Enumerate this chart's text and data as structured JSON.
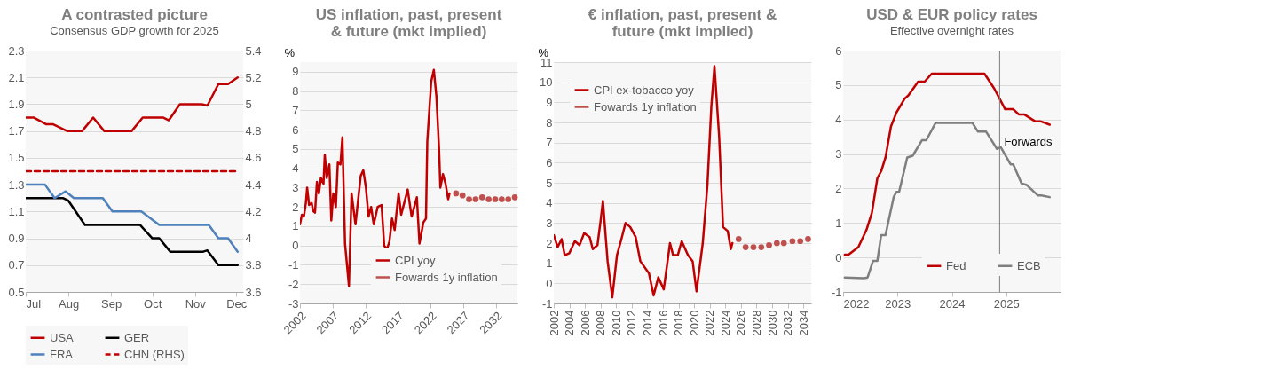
{
  "chart_data": [
    {
      "type": "line",
      "title": "A contrasted picture",
      "subtitle": "Consensus GDP growth for 2025",
      "xlim": [
        "--07-01",
        "--12-06"
      ],
      "xticks": [
        {
          "value": "--07-01",
          "label": "Jul"
        },
        {
          "value": "--08-01",
          "label": "Aug"
        },
        {
          "value": "--09-01",
          "label": "Sep"
        },
        {
          "value": "--10-01",
          "label": "Oct"
        },
        {
          "value": "--11-01",
          "label": "Nov"
        },
        {
          "value": "--12-01",
          "label": "Dec"
        }
      ],
      "ylim": [
        0.5,
        2.3
      ],
      "yticks": [
        0.5,
        0.7,
        0.9,
        1.1,
        1.3,
        1.5,
        1.7,
        1.9,
        2.1,
        2.3
      ],
      "y2lim": [
        3.6,
        5.4
      ],
      "y2ticks": [
        3.6,
        3.8,
        4,
        4.2,
        4.4,
        4.6,
        4.8,
        5,
        5.2,
        5.4
      ],
      "grid": "y",
      "legend": "bottom",
      "series": [
        {
          "name": "USA",
          "color": "#c00000",
          "x": [
            "--07-01",
            "--07-07",
            "--07-16",
            "--07-21",
            "--07-31",
            "--08-06",
            "--08-11",
            "--08-19",
            "--08-27",
            "--09-02",
            "--09-10",
            "--09-16",
            "--09-24",
            "--10-01",
            "--10-09",
            "--10-13",
            "--10-21",
            "--10-29",
            "--11-06",
            "--11-10",
            "--11-18",
            "--11-25",
            "--12-02"
          ],
          "values": [
            1.8,
            1.8,
            1.75,
            1.75,
            1.7,
            1.7,
            1.7,
            1.8,
            1.7,
            1.7,
            1.7,
            1.7,
            1.8,
            1.8,
            1.8,
            1.78,
            1.9,
            1.9,
            1.9,
            1.89,
            2.05,
            2.05,
            2.1
          ]
        },
        {
          "name": "GER",
          "color": "#000000",
          "x": [
            "--07-01",
            "--07-28",
            "--08-01",
            "--08-13",
            "--08-17",
            "--09-14",
            "--09-22",
            "--10-01",
            "--10-06",
            "--10-14",
            "--10-21",
            "--11-07",
            "--11-10",
            "--11-18",
            "--11-25",
            "--12-02"
          ],
          "values": [
            1.2,
            1.2,
            1.18,
            1.0,
            1.0,
            1.0,
            1.0,
            0.9,
            0.9,
            0.8,
            0.8,
            0.8,
            0.81,
            0.7,
            0.7,
            0.7
          ]
        },
        {
          "name": "FRA",
          "color": "#4f81bd",
          "x": [
            "--07-01",
            "--07-15",
            "--07-22",
            "--07-30",
            "--08-05",
            "--08-26",
            "--09-02",
            "--09-23",
            "--10-06",
            "--11-11",
            "--11-18",
            "--11-25",
            "--12-02"
          ],
          "values": [
            1.3,
            1.3,
            1.2,
            1.25,
            1.2,
            1.2,
            1.1,
            1.1,
            1.0,
            1.0,
            0.9,
            0.9,
            0.8
          ]
        },
        {
          "name": "CHN (RHS)",
          "color": "#c00000",
          "axis": "y2",
          "line_style": "dashed",
          "x": [
            "--07-01",
            "--12-02"
          ],
          "values": [
            4.5,
            4.5
          ]
        }
      ]
    },
    {
      "type": "line",
      "title": "US inflation, past, present & future (mkt implied)",
      "ylabel": "%",
      "xlim": [
        2002,
        2035.3
      ],
      "xticks": [
        2002,
        2007,
        2012,
        2017,
        2022,
        2027,
        2032
      ],
      "ylim": [
        -3,
        9.5
      ],
      "yticks": [
        -3,
        -2,
        -1,
        0,
        1,
        2,
        3,
        4,
        5,
        6,
        7,
        8,
        9
      ],
      "grid": "y",
      "legend": "bottom right",
      "series": [
        {
          "name": "CPI yoy",
          "color": "#c00000",
          "x": [
            2002,
            2002.3,
            2002.6,
            2002.9,
            2003.1,
            2003.4,
            2003.8,
            2004.0,
            2004.3,
            2004.6,
            2004.9,
            2005.2,
            2005.6,
            2005.8,
            2006.1,
            2006.5,
            2006.8,
            2007.1,
            2007.5,
            2007.8,
            2008.2,
            2008.5,
            2008.9,
            2009.5,
            2009.9,
            2010.5,
            2011.3,
            2011.7,
            2012.1,
            2012.5,
            2012.9,
            2013.3,
            2013.9,
            2014.5,
            2014.9,
            2015.3,
            2015.7,
            2016.1,
            2016.5,
            2017.1,
            2017.5,
            2018.5,
            2019.1,
            2019.9,
            2020.3,
            2020.9,
            2021.3,
            2021.5,
            2022.1,
            2022.5,
            2022.9,
            2023.3,
            2023.5,
            2023.9,
            2024.3,
            2024.7,
            2024.9
          ],
          "values": [
            1.1,
            1.6,
            1.5,
            2.2,
            3.0,
            2.1,
            2.2,
            1.8,
            1.7,
            3.3,
            2.7,
            3.5,
            3.2,
            4.7,
            3.5,
            4.2,
            1.3,
            2.7,
            2.0,
            4.3,
            4.2,
            5.6,
            0.1,
            -2.1,
            2.7,
            1.1,
            3.6,
            3.9,
            3.0,
            1.5,
            2.0,
            1.1,
            2.0,
            2.1,
            0.0,
            -0.2,
            0.2,
            1.4,
            0.8,
            2.7,
            1.6,
            2.9,
            1.5,
            2.5,
            0.1,
            1.2,
            1.4,
            5.4,
            8.5,
            9.1,
            7.7,
            5.0,
            3.0,
            3.7,
            3.2,
            2.4,
            2.7
          ]
        },
        {
          "name": "Fowards 1y inflation",
          "type": "scatter",
          "marker": "circle",
          "color": "#c0504d",
          "x": [
            2025.9,
            2026.9,
            2027.9,
            2028.9,
            2029.9,
            2030.9,
            2031.9,
            2032.9,
            2033.9,
            2034.9
          ],
          "values": [
            2.7,
            2.6,
            2.4,
            2.4,
            2.5,
            2.4,
            2.4,
            2.4,
            2.4,
            2.5
          ]
        }
      ]
    },
    {
      "type": "line",
      "title": "€ inflation, past, present & future (mkt implied)",
      "ylabel": "%",
      "xlim": [
        2002,
        2035
      ],
      "xticks": [
        2002,
        2004,
        2006,
        2008,
        2010,
        2012,
        2014,
        2016,
        2018,
        2020,
        2022,
        2024,
        2026,
        2028,
        2030,
        2032,
        2034
      ],
      "ylim": [
        -1,
        11
      ],
      "yticks": [
        -1,
        0,
        1,
        2,
        3,
        4,
        5,
        6,
        7,
        8,
        9,
        10,
        11
      ],
      "grid": "y",
      "legend": "top left",
      "series": [
        {
          "name": "CPI ex-tobacco yoy",
          "color": "#c00000",
          "x": [
            2002,
            2002.5,
            2003,
            2003.4,
            2004,
            2004.7,
            2005.3,
            2005.9,
            2006.6,
            2007,
            2007.6,
            2008,
            2008.3,
            2008.9,
            2009.5,
            2010.1,
            2010.6,
            2011.2,
            2011.8,
            2012.5,
            2013.1,
            2014.2,
            2014.8,
            2015.4,
            2016.1,
            2016.9,
            2017.3,
            2017.9,
            2018.4,
            2019.2,
            2019.8,
            2020.3,
            2021.1,
            2021.7,
            2022.2,
            2022.6,
            2023.2,
            2023.7,
            2024.3,
            2024.7,
            2024.9
          ],
          "values": [
            2.4,
            1.8,
            2.2,
            1.4,
            1.5,
            2.1,
            1.9,
            2.5,
            2.3,
            1.7,
            1.9,
            3.1,
            4.1,
            1.1,
            -0.7,
            1.4,
            2.1,
            3.0,
            2.8,
            2.3,
            1.1,
            0.5,
            -0.6,
            0.3,
            -0.3,
            2.0,
            1.4,
            1.4,
            2.1,
            1.4,
            1.1,
            -0.4,
            2.0,
            4.9,
            8.8,
            10.8,
            7.3,
            2.8,
            2.6,
            1.7,
            2.0
          ]
        },
        {
          "name": "Fowards 1y inflation",
          "type": "scatter",
          "marker": "circle",
          "color": "#c0504d",
          "x": [
            2025.7,
            2026.6,
            2027.6,
            2028.6,
            2029.6,
            2030.6,
            2031.5,
            2032.6,
            2033.6,
            2034.6
          ],
          "values": [
            2.2,
            1.8,
            1.8,
            1.8,
            1.9,
            2.0,
            2.0,
            2.1,
            2.1,
            2.2
          ]
        }
      ]
    },
    {
      "type": "line",
      "title": "USD & EUR policy rates",
      "subtitle": "Effective overnight rates",
      "xlim": [
        2022,
        2026
      ],
      "xticks": [
        2022,
        2023,
        2024,
        2025
      ],
      "ylim": [
        -1,
        6
      ],
      "yticks": [
        -1,
        0,
        1,
        2,
        3,
        4,
        5,
        6
      ],
      "grid": "y",
      "legend": "bottom right",
      "ref_lines": [
        {
          "axis": "x",
          "value": 2024.88,
          "label": "Forwards",
          "color": "#7f7f7f"
        }
      ],
      "series": [
        {
          "name": "Fed",
          "color": "#c00000",
          "x": [
            2022.03,
            2022.1,
            2022.28,
            2022.43,
            2022.53,
            2022.63,
            2022.7,
            2022.78,
            2022.88,
            2022.98,
            2023.13,
            2023.2,
            2023.38,
            2023.5,
            2023.63,
            2024.18,
            2024.6,
            2024.78,
            2024.88,
            2024.98,
            2025.13,
            2025.23,
            2025.33,
            2025.53,
            2025.63,
            2025.8
          ],
          "values": [
            0.08,
            0.08,
            0.3,
            0.8,
            1.3,
            2.3,
            2.5,
            2.9,
            3.8,
            4.2,
            4.6,
            4.7,
            5.1,
            5.1,
            5.33,
            5.33,
            5.33,
            4.9,
            4.6,
            4.3,
            4.3,
            4.15,
            4.15,
            3.95,
            3.95,
            3.85
          ]
        },
        {
          "name": "ECB",
          "color": "#7f7f7f",
          "x": [
            2022.03,
            2022.38,
            2022.45,
            2022.55,
            2022.63,
            2022.7,
            2022.78,
            2022.93,
            2022.98,
            2023.03,
            2023.18,
            2023.28,
            2023.45,
            2023.53,
            2023.7,
            2024.38,
            2024.48,
            2024.63,
            2024.83,
            2024.9,
            2025.08,
            2025.13,
            2025.28,
            2025.38,
            2025.58,
            2025.65,
            2025.8
          ],
          "values": [
            -0.58,
            -0.6,
            -0.58,
            -0.1,
            -0.1,
            0.65,
            0.65,
            1.75,
            1.9,
            1.9,
            2.9,
            2.95,
            3.4,
            3.4,
            3.9,
            3.9,
            3.65,
            3.65,
            3.15,
            3.2,
            2.7,
            2.7,
            2.15,
            2.1,
            1.8,
            1.8,
            1.75
          ]
        }
      ]
    }
  ]
}
